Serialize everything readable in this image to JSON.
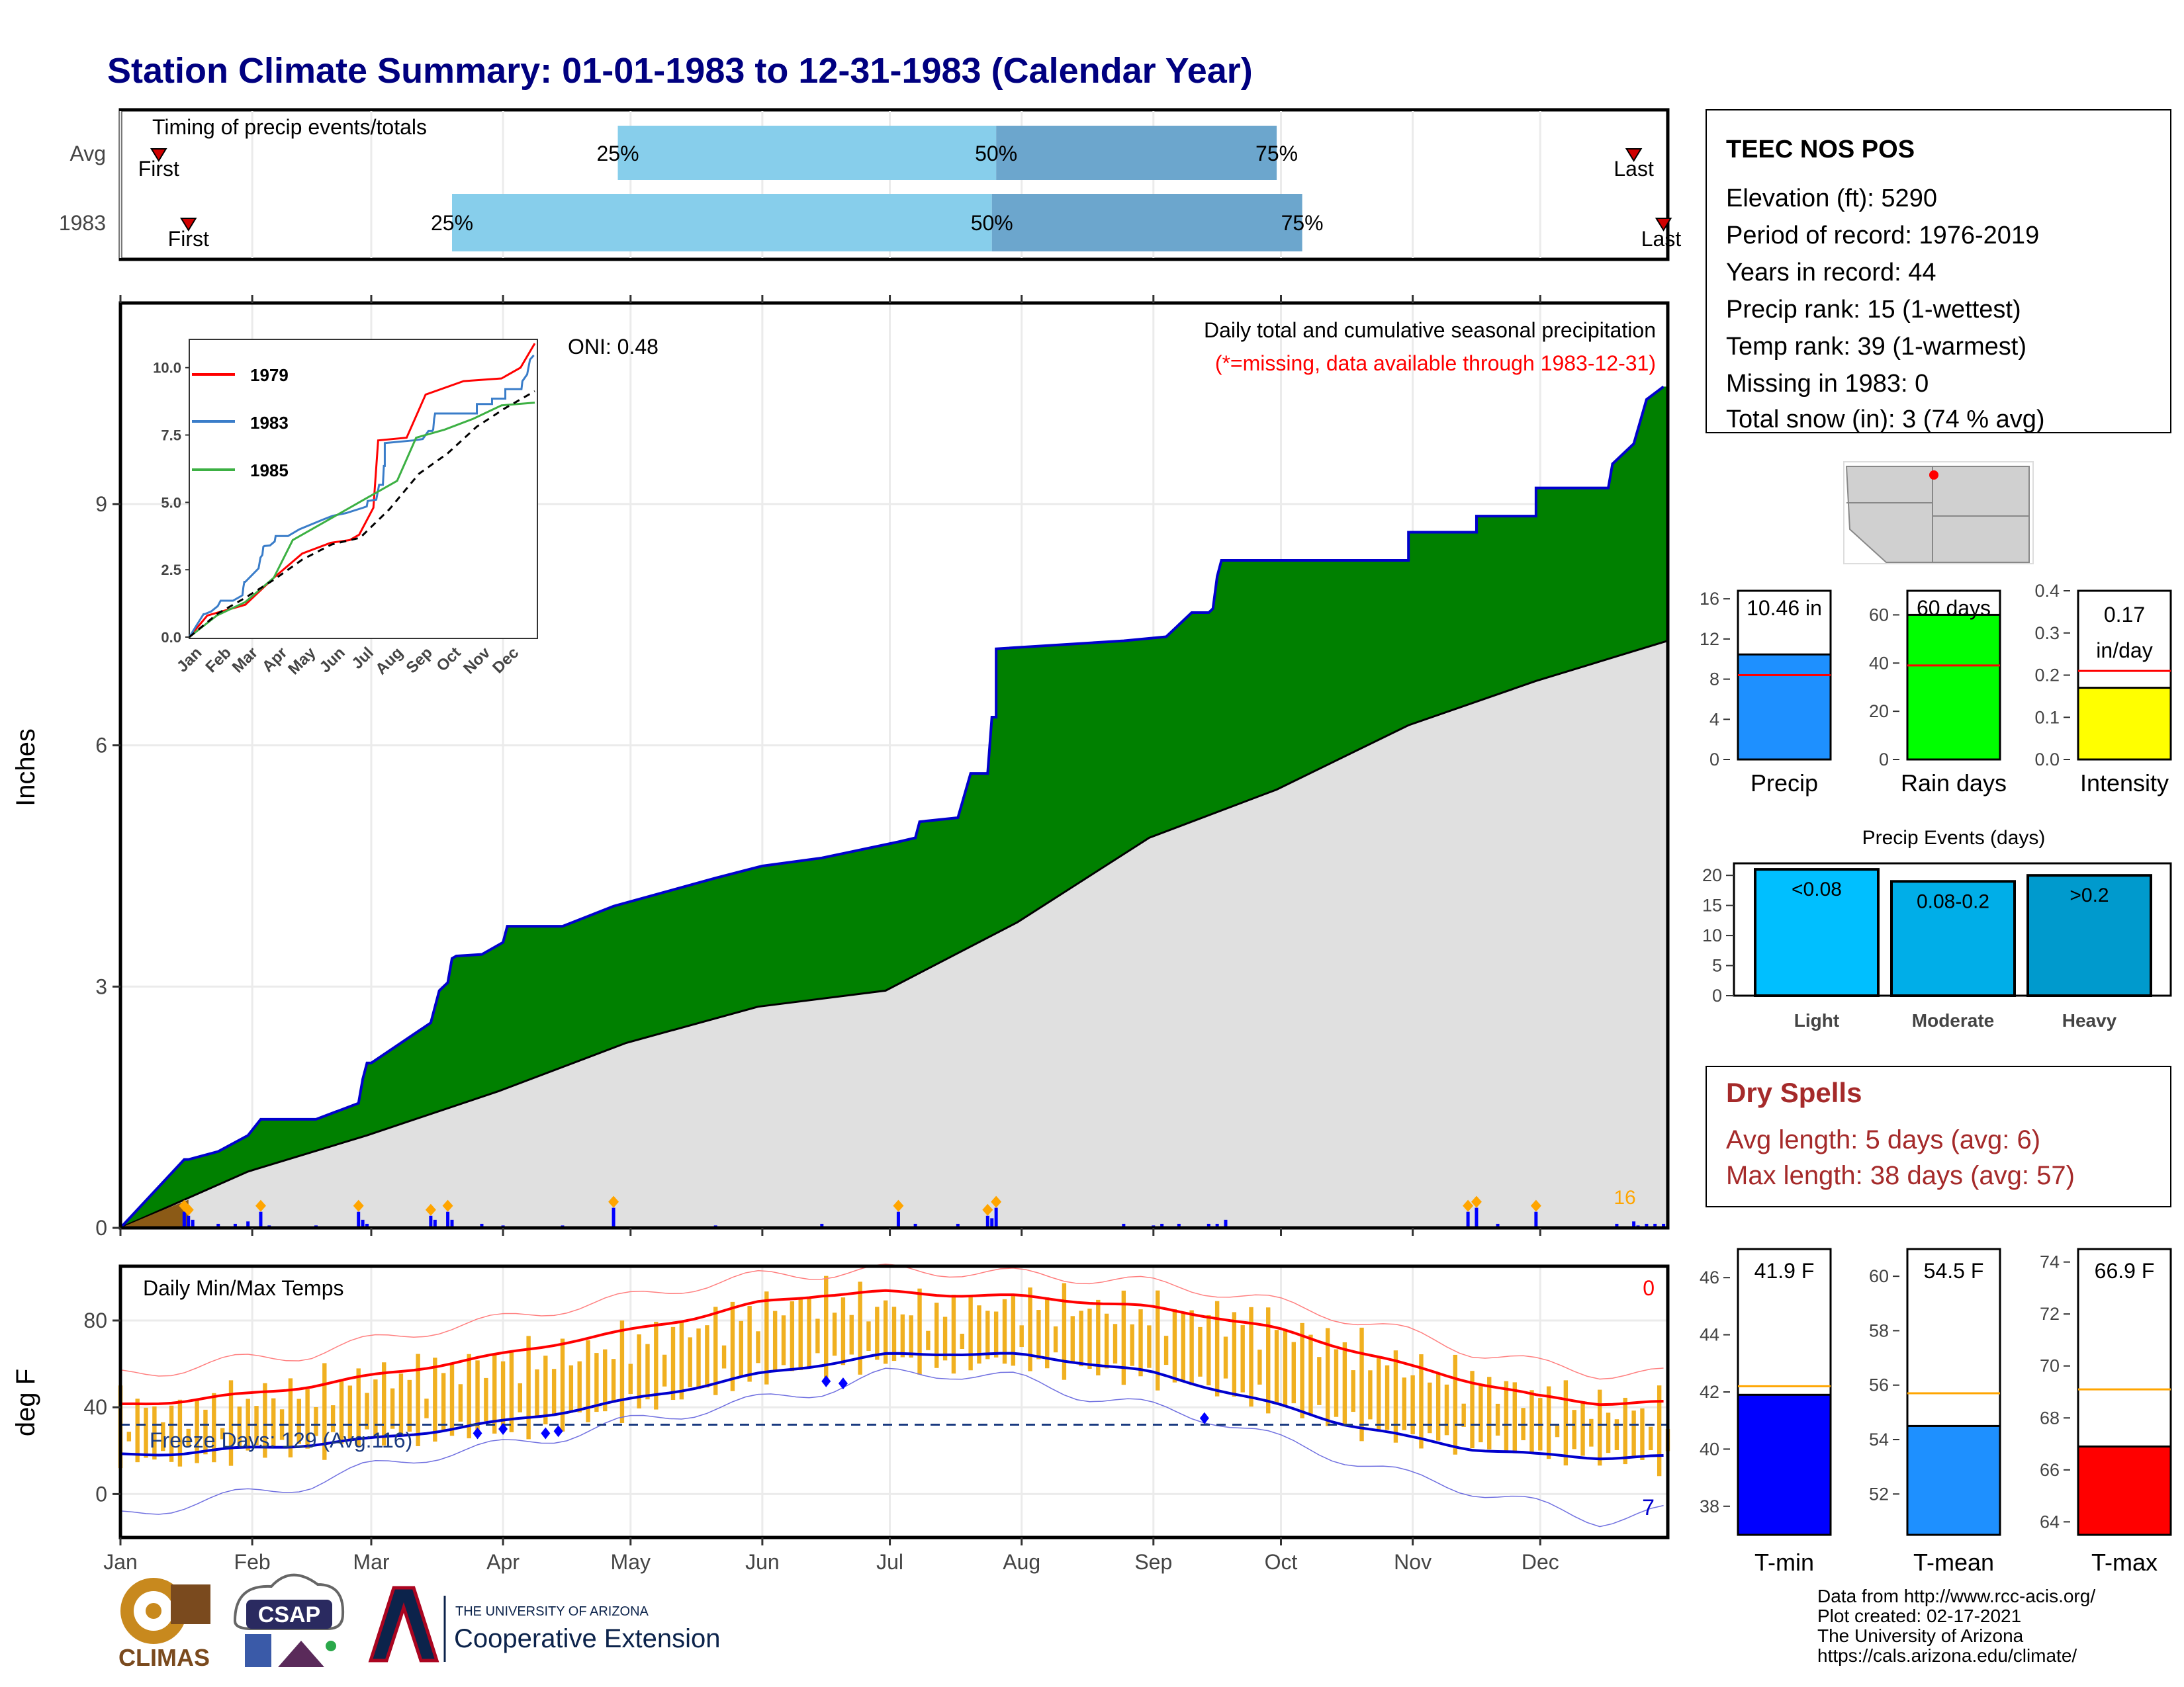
{
  "title": "Station Climate Summary: 01-01-1983 to 12-31-1983 (Calendar Year)",
  "colors": {
    "title": "#000080",
    "precip_cum_fill": "#008000",
    "precip_cum_line": "#0000cd",
    "precip_avg_fill": "#e0e0e0",
    "snow_fill": "#8b5a16",
    "daily_bar": "#0000ff",
    "marker": "#ffa500",
    "temp_bar": "#f0b020",
    "tmax_line": "#ff0000",
    "tmin_line": "#0000cd",
    "dry_spells": "#a52a2a",
    "light_blue": "#87ceeb",
    "mid_blue": "#6ca6cd"
  },
  "timing": {
    "title": "Timing of precip events/totals",
    "rows": [
      {
        "label": "Avg",
        "first_label": "First",
        "last_label": "Last",
        "first_day": 10,
        "last_day": 357,
        "p25_label": "25%",
        "p50_label": "50%",
        "p75_label": "75%",
        "p25": 118,
        "p50": 207,
        "p75": 273
      },
      {
        "label": "1983",
        "first_label": "First",
        "last_label": "Last",
        "first_day": 17,
        "last_day": 364,
        "p25_label": "25%",
        "p50_label": "50%",
        "p75_label": "75%",
        "p25": 79,
        "p50": 206,
        "p75": 279
      }
    ]
  },
  "precip": {
    "ylabel": "Inches",
    "yticks": [
      "0",
      "3",
      "6",
      "9"
    ],
    "caption": "Daily total and cumulative seasonal precipitation",
    "missing_note": "(*=missing, data available through 1983-12-31)",
    "oni": "ONI: 0.48",
    "snow_annotation": "16"
  },
  "inset": {
    "yticks": [
      "0.0",
      "2.5",
      "5.0",
      "7.5",
      "10.0"
    ],
    "xticks": [
      "Jan",
      "Feb",
      "Mar",
      "Apr",
      "May",
      "Jun",
      "Jul",
      "Aug",
      "Sep",
      "Oct",
      "Nov",
      "Dec"
    ],
    "legend": [
      {
        "name": "1979",
        "color": "#ff0000"
      },
      {
        "name": "1983",
        "color": "#3a7dc9"
      },
      {
        "name": "1985",
        "color": "#3cb043"
      }
    ]
  },
  "temps": {
    "title": "Daily Min/Max Temps",
    "ylabel": "deg F",
    "yticks": [
      "0",
      "40",
      "80"
    ],
    "freeze": "Freeze Days: 129 (Avg:116)",
    "count_top": "0",
    "count_bottom": "7",
    "months": [
      "Jan",
      "Feb",
      "Mar",
      "Apr",
      "May",
      "Jun",
      "Jul",
      "Aug",
      "Sep",
      "Oct",
      "Nov",
      "Dec"
    ]
  },
  "station": {
    "name": "TEEC NOS POS",
    "lines": [
      "Elevation (ft): 5290",
      "Period of record: 1976-2019",
      "Years in record: 44",
      "Precip rank: 15 (1-wettest)",
      "Temp rank: 39 (1-warmest)",
      "Missing in 1983: 0",
      "Total snow (in): 3 (74 % avg)"
    ]
  },
  "summary_bars": {
    "precip": {
      "label": "Precip",
      "value_label": "10.46 in",
      "yticks": [
        "0",
        "4",
        "8",
        "12",
        "16"
      ]
    },
    "rain_days": {
      "label": "Rain days",
      "value_label": "60 days",
      "yticks": [
        "0",
        "20",
        "40",
        "60"
      ]
    },
    "intensity": {
      "label": "Intensity",
      "value_label_1": "0.17",
      "value_label_2": "in/day",
      "yticks": [
        "0.0",
        "0.1",
        "0.2",
        "0.3",
        "0.4"
      ]
    }
  },
  "events": {
    "title": "Precip Events (days)",
    "yticks": [
      "0",
      "5",
      "10",
      "15",
      "20"
    ],
    "bars": [
      {
        "category": "Light",
        "label": "<0.08",
        "color": "#00bfff"
      },
      {
        "category": "Moderate",
        "label": "0.08-0.2",
        "color": "#00aee8"
      },
      {
        "category": "Heavy",
        "label": ">0.2",
        "color": "#009acd"
      }
    ]
  },
  "dry_spells": {
    "title": "Dry Spells",
    "avg": "Avg length: 5 days (avg: 6)",
    "max": "Max length: 38 days (avg: 57)"
  },
  "temp_bars": {
    "tmin": {
      "label": "T-min",
      "value_label": "41.9 F",
      "yticks": [
        "38",
        "40",
        "42",
        "44",
        "46"
      ],
      "color": "#0000ff"
    },
    "tmean": {
      "label": "T-mean",
      "value_label": "54.5 F",
      "yticks": [
        "52",
        "54",
        "56",
        "58",
        "60"
      ],
      "color": "#1e90ff"
    },
    "tmax": {
      "label": "T-max",
      "value_label": "66.9 F",
      "yticks": [
        "64",
        "66",
        "68",
        "70",
        "72",
        "74"
      ],
      "color": "#ff0000"
    }
  },
  "footer": {
    "lines": [
      "Data from http://www.rcc-acis.org/",
      "Plot created: 02-17-2021",
      "The University of Arizona",
      "https://cals.arizona.edu/climate/"
    ],
    "logo_climas": "CLIMAS",
    "logo_csap": "CSAP",
    "logo_ua_small": "THE UNIVERSITY OF ARIZONA",
    "logo_ua_big": "Cooperative Extension"
  },
  "chart_data": [
    {
      "type": "area",
      "title": "Daily total and cumulative seasonal precipitation",
      "ylabel": "Inches",
      "ylim": [
        0,
        11.5
      ],
      "x_unit": "day of year 1983",
      "series": [
        {
          "name": "1983 cumulative",
          "x": [
            1,
            16,
            17,
            24,
            31,
            34,
            47,
            57,
            58,
            59,
            60,
            74,
            76,
            78,
            79,
            80,
            86,
            91,
            92,
            105,
            117,
            117,
            141,
            141,
            152,
            152,
            166,
            166,
            184,
            188,
            189,
            189,
            198,
            201,
            205,
            206,
            207,
            207,
            237,
            237,
            247,
            247,
            250,
            250,
            253,
            257,
            258,
            258,
            259,
            260,
            304,
            304,
            320,
            320,
            334,
            334,
            351,
            352,
            357,
            360,
            364
          ],
          "values": [
            0,
            0.85,
            0.85,
            0.95,
            1.15,
            1.35,
            1.35,
            1.55,
            1.85,
            2.05,
            2.05,
            2.55,
            2.95,
            3.05,
            3.35,
            3.38,
            3.4,
            3.55,
            3.75,
            3.75,
            4.0,
            4.0,
            4.35,
            4.35,
            4.5,
            4.5,
            4.6,
            4.6,
            4.8,
            4.85,
            5.05,
            5.05,
            5.1,
            5.65,
            5.65,
            6.35,
            6.35,
            7.2,
            7.3,
            7.3,
            7.35,
            7.35,
            7.5,
            7.5,
            7.65,
            7.65,
            7.7,
            7.7,
            8.1,
            8.3,
            8.3,
            8.65,
            8.65,
            8.85,
            8.85,
            9.2,
            9.2,
            9.5,
            9.75,
            10.3,
            10.46
          ]
        },
        {
          "name": "average cumulative",
          "x": [
            1,
            31,
            59,
            90,
            120,
            151,
            181,
            212,
            243,
            273,
            304,
            334,
            365
          ],
          "values": [
            0,
            0.7,
            1.15,
            1.7,
            2.3,
            2.75,
            2.95,
            3.8,
            4.85,
            5.45,
            6.25,
            6.8,
            7.3
          ]
        }
      ],
      "daily_precip": {
        "x": [
          16,
          17,
          18,
          24,
          28,
          31,
          34,
          36,
          47,
          57,
          58,
          59,
          60,
          74,
          75,
          78,
          79,
          86,
          91,
          105,
          117,
          138,
          141,
          166,
          184,
          188,
          189,
          198,
          205,
          206,
          207,
          217,
          237,
          244,
          246,
          249,
          250,
          253,
          257,
          259,
          261,
          318,
          320,
          325,
          334,
          353,
          357,
          358,
          360,
          362,
          364
        ],
        "values": [
          0.2,
          0.15,
          0.1,
          0.05,
          0.05,
          0.08,
          0.2,
          0.03,
          0.03,
          0.2,
          0.1,
          0.05,
          0.02,
          0.15,
          0.1,
          0.2,
          0.1,
          0.05,
          0.03,
          0.03,
          0.25,
          0.02,
          0.03,
          0.05,
          0.2,
          0.05,
          0.02,
          0.05,
          0.15,
          0.12,
          0.25,
          0.02,
          0.05,
          0.03,
          0.05,
          0.02,
          0.05,
          0.02,
          0.05,
          0.05,
          0.1,
          0.2,
          0.25,
          0.05,
          0.2,
          0.05,
          0.08,
          0.03,
          0.05,
          0.05,
          0.05
        ]
      }
    },
    {
      "type": "line",
      "title": "Daily Min/Max Temps",
      "ylabel": "deg F",
      "ylim": [
        -20,
        105
      ],
      "x": [
        1,
        15,
        31,
        46,
        59,
        74,
        90,
        105,
        120,
        135,
        151,
        166,
        181,
        196,
        212,
        227,
        243,
        258,
        273,
        288,
        304,
        319,
        334,
        349,
        365
      ],
      "series": [
        {
          "name": "average max",
          "values": [
            41,
            43,
            46,
            50,
            54,
            59,
            64,
            70,
            75,
            81,
            88,
            92,
            93,
            92,
            91,
            89,
            86,
            82,
            76,
            68,
            59,
            52,
            45,
            42,
            42
          ]
        },
        {
          "name": "average min",
          "values": [
            18,
            19,
            21,
            23,
            25,
            29,
            33,
            38,
            43,
            49,
            55,
            60,
            64,
            65,
            64,
            61,
            56,
            49,
            41,
            33,
            26,
            21,
            18,
            17,
            17
          ]
        },
        {
          "name": "record max",
          "values": [
            55,
            58,
            62,
            65,
            70,
            76,
            80,
            86,
            90,
            96,
            100,
            102,
            103,
            103,
            101,
            100,
            97,
            94,
            88,
            82,
            74,
            66,
            60,
            56,
            55
          ]
        },
        {
          "name": "record min",
          "values": [
            -10,
            -5,
            0,
            5,
            12,
            18,
            22,
            27,
            33,
            38,
            43,
            48,
            55,
            56,
            53,
            46,
            40,
            35,
            25,
            17,
            8,
            2,
            -5,
            -12,
            -8
          ]
        },
        {
          "name": "1983 max",
          "values": [
            40,
            38,
            44,
            47,
            53,
            56,
            61,
            63,
            69,
            76,
            84,
            90,
            86,
            84,
            88,
            86,
            83,
            82,
            77,
            68,
            58,
            52,
            45,
            40,
            38
          ]
        },
        {
          "name": "1983 min",
          "values": [
            18,
            16,
            20,
            22,
            26,
            28,
            30,
            34,
            40,
            47,
            55,
            60,
            62,
            60,
            62,
            58,
            55,
            50,
            41,
            34,
            26,
            24,
            20,
            18,
            15
          ]
        }
      ]
    },
    {
      "type": "bar",
      "categories": [
        "Precip"
      ],
      "values": [
        10.46
      ],
      "avg": 8.4,
      "ylim": [
        0,
        16
      ]
    },
    {
      "type": "bar",
      "categories": [
        "Rain days"
      ],
      "values": [
        60
      ],
      "avg": 39,
      "ylim": [
        0,
        70
      ]
    },
    {
      "type": "bar",
      "categories": [
        "Intensity"
      ],
      "values": [
        0.17
      ],
      "avg": 0.21,
      "ylim": [
        0,
        0.4
      ]
    },
    {
      "type": "bar",
      "title": "Precip Events (days)",
      "categories": [
        "Light",
        "Moderate",
        "Heavy"
      ],
      "values": [
        21,
        19,
        20
      ],
      "ylim": [
        0,
        20
      ]
    },
    {
      "type": "bar",
      "categories": [
        "T-min"
      ],
      "values": [
        41.9
      ],
      "avg": 42.2,
      "ylim": [
        37,
        47
      ]
    },
    {
      "type": "bar",
      "categories": [
        "T-mean"
      ],
      "values": [
        54.5
      ],
      "avg": 55.7,
      "ylim": [
        50.5,
        61
      ]
    },
    {
      "type": "bar",
      "categories": [
        "T-max"
      ],
      "values": [
        66.9
      ],
      "avg": 69.1,
      "ylim": [
        63.5,
        74.5
      ]
    }
  ]
}
